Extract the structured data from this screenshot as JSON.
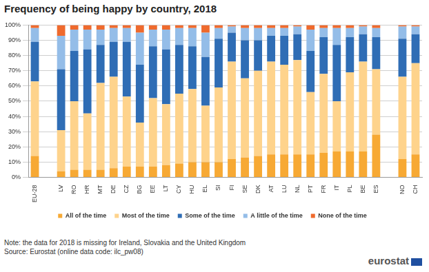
{
  "chart_data": {
    "type": "bar",
    "title": "Frequency of being happy by country, 2018",
    "notes": [
      "Note: the data for 2018 is missing for Ireland, Slovakia and the United Kingdom",
      "Source: Eurostat (online data code: ilc_pw08)"
    ],
    "logo": "eurostat",
    "stacked": true,
    "grid": true,
    "legend": "bottom",
    "data_labels": false,
    "categories": [
      "EU-28",
      null,
      "LV",
      "RO",
      "HR",
      "MT",
      "DE",
      "CZ",
      "BG",
      "EE",
      "LT",
      "CY",
      "HU",
      "EL",
      "SI",
      "FI",
      "SE",
      "DK",
      "AT",
      "LU",
      "NL",
      "PT",
      "FR",
      "IT",
      "PL",
      "BE",
      "ES",
      null,
      "NO",
      "CH"
    ],
    "series": [
      {
        "name": "All of the time",
        "color": "#f7a934",
        "values": [
          14,
          null,
          4,
          5,
          5,
          5,
          6,
          7,
          7,
          7,
          8,
          9,
          10,
          10,
          10,
          12,
          13,
          14,
          15,
          15,
          15,
          15,
          16,
          17,
          17,
          17,
          28,
          null,
          12,
          15
        ]
      },
      {
        "name": "Most of the time",
        "color": "#fed38c",
        "values": [
          49,
          null,
          27,
          45,
          37,
          57,
          60,
          46,
          29,
          45,
          40,
          46,
          48,
          37,
          49,
          64,
          52,
          56,
          61,
          59,
          62,
          41,
          52,
          33,
          52,
          59,
          43,
          null,
          54,
          60
        ]
      },
      {
        "name": "Some of the time",
        "color": "#2f6db5",
        "values": [
          26,
          null,
          40,
          33,
          42,
          25,
          23,
          36,
          38,
          34,
          36,
          32,
          28,
          32,
          32,
          19,
          25,
          20,
          17,
          19,
          17,
          27,
          24,
          37,
          23,
          18,
          21,
          null,
          25,
          19
        ]
      },
      {
        "name": "A little of the time",
        "color": "#94bde8",
        "values": [
          9,
          null,
          22,
          14,
          13,
          10,
          9,
          9,
          21,
          11,
          13,
          11,
          12,
          16,
          7,
          4,
          8,
          8,
          5,
          5,
          5,
          14,
          6,
          11,
          6,
          5,
          6,
          null,
          8,
          5
        ]
      },
      {
        "name": "None of the time",
        "color": "#ef6a2d",
        "values": [
          2,
          null,
          7,
          3,
          3,
          3,
          2,
          2,
          5,
          3,
          3,
          2,
          2,
          5,
          2,
          1,
          2,
          2,
          2,
          2,
          1,
          3,
          2,
          2,
          2,
          1,
          2,
          null,
          1,
          1
        ]
      }
    ],
    "ylim": [
      0,
      100
    ],
    "yticks": [
      {
        "value": 0,
        "label": "0%"
      },
      {
        "value": 10,
        "label": "10%"
      },
      {
        "value": 20,
        "label": "20%"
      },
      {
        "value": 30,
        "label": "30%"
      },
      {
        "value": 40,
        "label": "40%"
      },
      {
        "value": 50,
        "label": "50%"
      },
      {
        "value": 60,
        "label": "60%"
      },
      {
        "value": 70,
        "label": "70%"
      },
      {
        "value": 80,
        "label": "80%"
      },
      {
        "value": 90,
        "label": "90%"
      },
      {
        "value": 100,
        "label": "100%"
      }
    ]
  }
}
